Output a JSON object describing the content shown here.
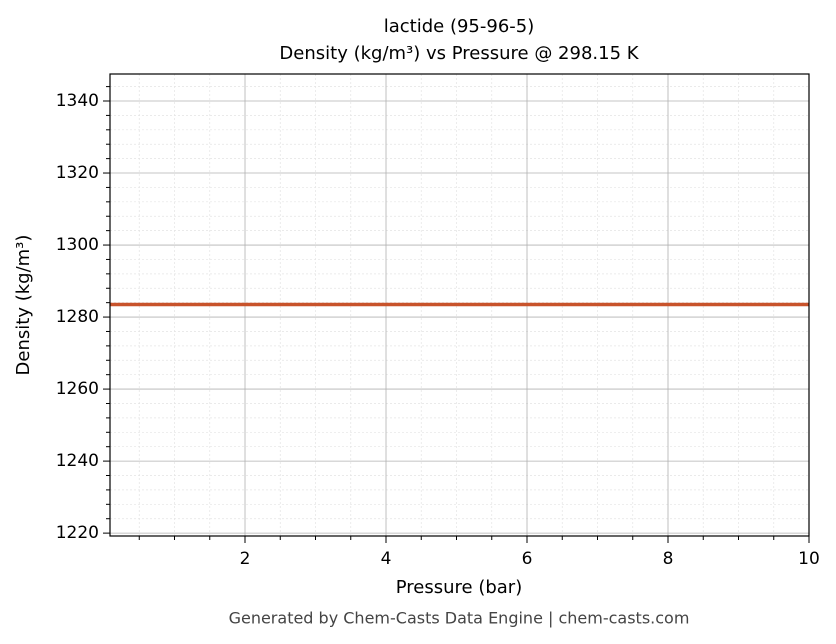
{
  "chart_data": {
    "type": "line",
    "title": "lactide (95-96-5)",
    "subtitle": "Density (kg/m³) vs Pressure @ 298.15 K",
    "x_label": "Pressure (bar)",
    "y_label": "Density (kg/m³)",
    "x": [
      0.085,
      10
    ],
    "series": [
      {
        "name": "Density",
        "color": "#c8532b",
        "values": [
          1283.5,
          1283.5
        ]
      }
    ],
    "xlim": [
      0.085,
      10
    ],
    "xticks": [
      2,
      4,
      6,
      8,
      10
    ],
    "xminorticks": [
      0.5,
      1,
      1.5,
      2.5,
      3,
      3.5,
      4.5,
      5,
      5.5,
      6.5,
      7,
      7.5,
      8.5,
      9,
      9.5
    ],
    "ylim": [
      1219.2,
      1347.5
    ],
    "yticks": [
      1220,
      1240,
      1260,
      1280,
      1300,
      1320,
      1340
    ],
    "yminorticks": [
      1224,
      1228,
      1232,
      1236,
      1244,
      1248,
      1252,
      1256,
      1264,
      1268,
      1272,
      1276,
      1284,
      1288,
      1292,
      1296,
      1304,
      1308,
      1312,
      1316,
      1324,
      1328,
      1332,
      1336,
      1344
    ],
    "grid": true
  },
  "footer": "Generated by Chem-Casts Data Engine | chem-casts.com"
}
